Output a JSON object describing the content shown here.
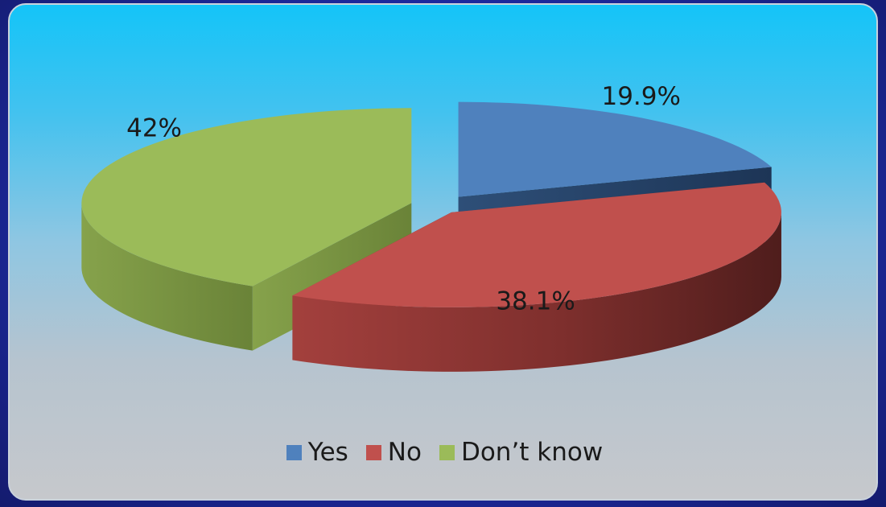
{
  "chart_data": {
    "type": "pie",
    "style": "3d-exploded",
    "categories": [
      "Yes",
      "No",
      "Don’t know"
    ],
    "values": [
      19.9,
      38.1,
      42
    ],
    "data_labels": [
      "19.9%",
      "38.1%",
      "42%"
    ],
    "colors": [
      "#4f81bd",
      "#c0504d",
      "#9bbb59"
    ],
    "legend_position": "bottom"
  }
}
